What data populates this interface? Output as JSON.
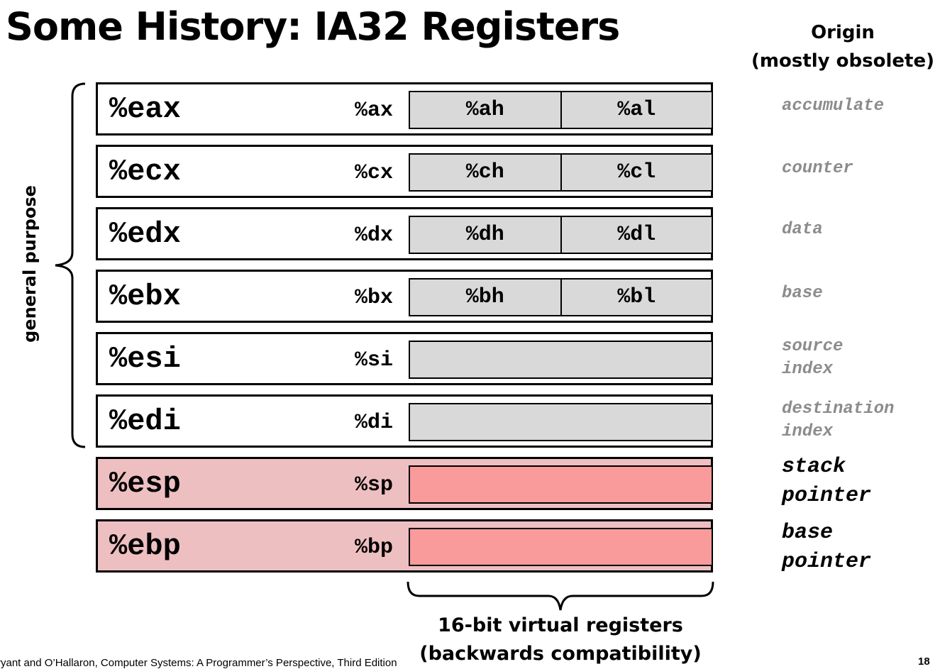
{
  "title": "Some History: IA32 Registers",
  "origin_header": {
    "line1": "Origin",
    "line2": "(mostly obsolete)"
  },
  "side_label": "general purpose",
  "registers": [
    {
      "name": "%eax",
      "reg16": "%ax",
      "high": "%ah",
      "low": "%al",
      "origin1": "accumulate",
      "origin2": ""
    },
    {
      "name": "%ecx",
      "reg16": "%cx",
      "high": "%ch",
      "low": "%cl",
      "origin1": "counter",
      "origin2": ""
    },
    {
      "name": "%edx",
      "reg16": "%dx",
      "high": "%dh",
      "low": "%dl",
      "origin1": "data",
      "origin2": ""
    },
    {
      "name": "%ebx",
      "reg16": "%bx",
      "high": "%bh",
      "low": "%bl",
      "origin1": "base",
      "origin2": ""
    },
    {
      "name": "%esi",
      "reg16": "%si",
      "origin1": "source",
      "origin2": "index"
    },
    {
      "name": "%edi",
      "reg16": "%di",
      "origin1": "destination",
      "origin2": "index"
    },
    {
      "name": "%esp",
      "reg16": "%sp",
      "origin1": "stack",
      "origin2": "pointer"
    },
    {
      "name": "%ebp",
      "reg16": "%bp",
      "origin1": "base",
      "origin2": "pointer"
    }
  ],
  "bottom_note": {
    "line1": "16-bit virtual registers",
    "line2": "(backwards compatibility)"
  },
  "footer": "Bryant and O’Hallaron, Computer Systems: A Programmer’s Perspective, Third Edition",
  "page_number": "18",
  "colors": {
    "sub_register_gray": "#d9d9d9",
    "stack_register_pink": "#eebfc1",
    "stack_sub_register_pink": "#f99a9b",
    "obsolete_origin_text": "#8c8c8c"
  }
}
